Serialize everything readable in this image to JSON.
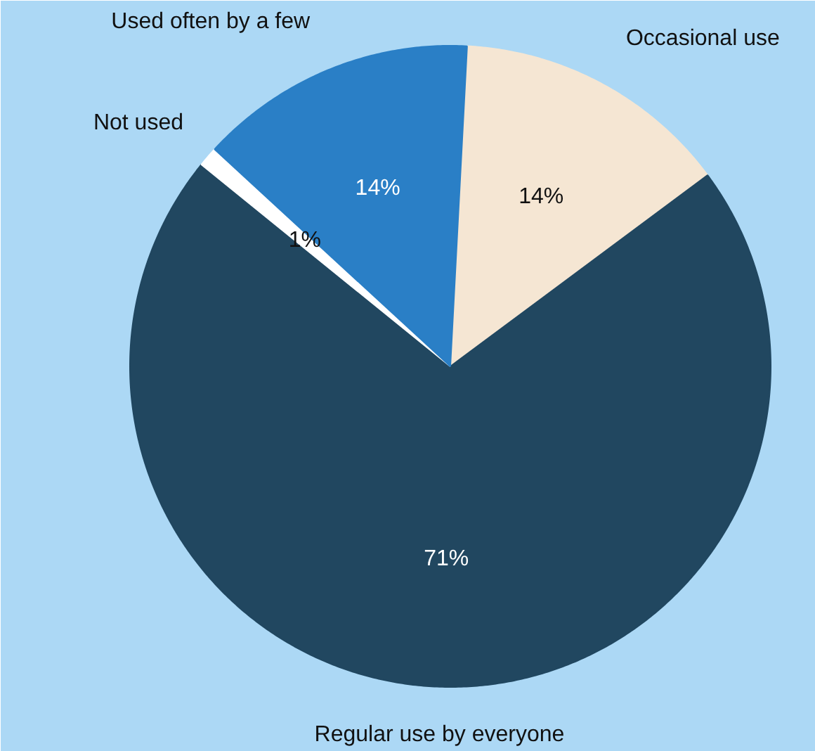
{
  "chart_data": {
    "type": "pie",
    "categories": [
      "Occasional use",
      "Regular use  by everyone",
      "Not used",
      "Used often by a few"
    ],
    "values": [
      14,
      71,
      1,
      14
    ],
    "colors": [
      "#f5e6d3",
      "#214760",
      "#ffffff",
      "#2a7fc6"
    ],
    "value_labels": [
      "14%",
      "71%",
      "1%",
      "14%"
    ]
  }
}
